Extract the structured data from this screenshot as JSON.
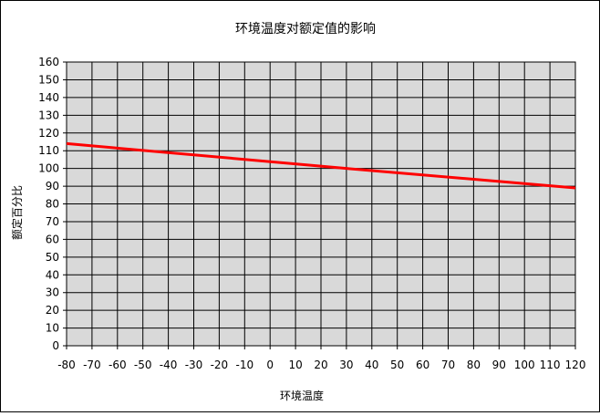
{
  "chart_data": {
    "type": "line",
    "title": "环境温度对额定值的影响",
    "xlabel": "环境温度",
    "ylabel": "额定百分比",
    "x_ticks": [
      -80,
      -70,
      -60,
      -50,
      -40,
      -30,
      -20,
      -10,
      0,
      10,
      20,
      30,
      40,
      50,
      60,
      70,
      80,
      90,
      100,
      110,
      120
    ],
    "y_ticks": [
      0,
      10,
      20,
      30,
      40,
      50,
      60,
      70,
      80,
      90,
      100,
      110,
      120,
      130,
      140,
      150,
      160
    ],
    "xlim": [
      -80,
      120
    ],
    "ylim": [
      0,
      160
    ],
    "grid": true,
    "legend": "none",
    "series": [
      {
        "x": [
          -80,
          30,
          120
        ],
        "y": [
          114,
          100,
          89
        ]
      }
    ]
  },
  "colors": {
    "plot_background": "#d9d9d9",
    "grid": "#000000",
    "line": "#ff0000"
  }
}
